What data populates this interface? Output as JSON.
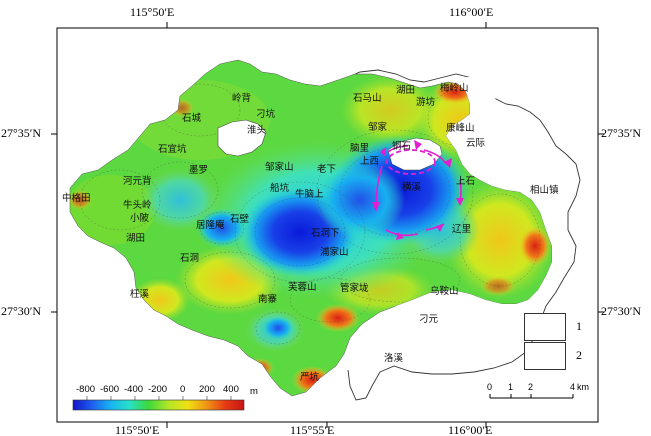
{
  "axes": {
    "top": [
      "115°50′E",
      "116°00′E"
    ],
    "bottom": [
      "115°50′E",
      "115°55′E",
      "116°00′E"
    ],
    "left": [
      "27°35′N",
      "27°30′N"
    ],
    "right": [
      "27°35′N",
      "27°30′N"
    ]
  },
  "places": {
    "lingbei": "岭背",
    "yikeng": "刁坑",
    "shicheng": "石城",
    "huaitou": "淮头",
    "shiyikeng": "石宜坑",
    "shimashan": "石马山",
    "hutian": "湖田",
    "meiqiaoshan": "梅岭山",
    "youfang": "游坊",
    "zoujia": "邹家",
    "kangfengshan": "康峰山",
    "yunji": "云际",
    "zoujiashan": "邹家山",
    "laoxia": "老下",
    "naoli": "脑里",
    "tongshi": "铜石",
    "shangxi": "上西",
    "hongyuan": "河元背",
    "moluo": "墨罗",
    "chuankeng": "船坑",
    "niushangkeng": "牛脑上",
    "zhonggetian": "中格田",
    "niutouling": "牛头岭",
    "xiaopo": "小陂",
    "hutian2": "湖田",
    "juyuanao": "居隆庵",
    "shishuiyuan": "石壁",
    "shidongxia": "石洞下",
    "puzhaoshan": "浦家山",
    "hengxi": "横溪",
    "shangshi": "上石",
    "xiangshanzhen": "相山镇",
    "liaoli": "辽里",
    "shidong": "石洞",
    "zhiyuan": "枉溪",
    "furongshan": "芙蓉山",
    "nanzhai": "南寨",
    "guanjialong": "管家垅",
    "wuyanshan": "乌鞍山",
    "diaoyuan": "刁元",
    "luoxi": "洛溪",
    "yanping": "严坑"
  },
  "legend": {
    "items": [
      {
        "num": "1",
        "symbol": "dashed-ellipse-icon",
        "color": "#e020d0"
      },
      {
        "num": "2",
        "symbol": "circular-arrows-icon",
        "color": "#e020d0"
      }
    ]
  },
  "colorbar": {
    "ticks": [
      "-800",
      "-600",
      "-400",
      "-200",
      "0",
      "200",
      "400"
    ],
    "unit": "m",
    "colors": [
      "#1414c8",
      "#1e5ef0",
      "#18b4f0",
      "#28e0c8",
      "#3cd83c",
      "#b4e628",
      "#f0e014",
      "#f09614",
      "#e63c14",
      "#c81414"
    ]
  },
  "scalebar": {
    "ticks": [
      "0",
      "1",
      "2",
      "4"
    ],
    "unit": "km"
  },
  "colors": {
    "arrow": "#e020d0",
    "frame": "#000000",
    "outline": "#333333"
  }
}
